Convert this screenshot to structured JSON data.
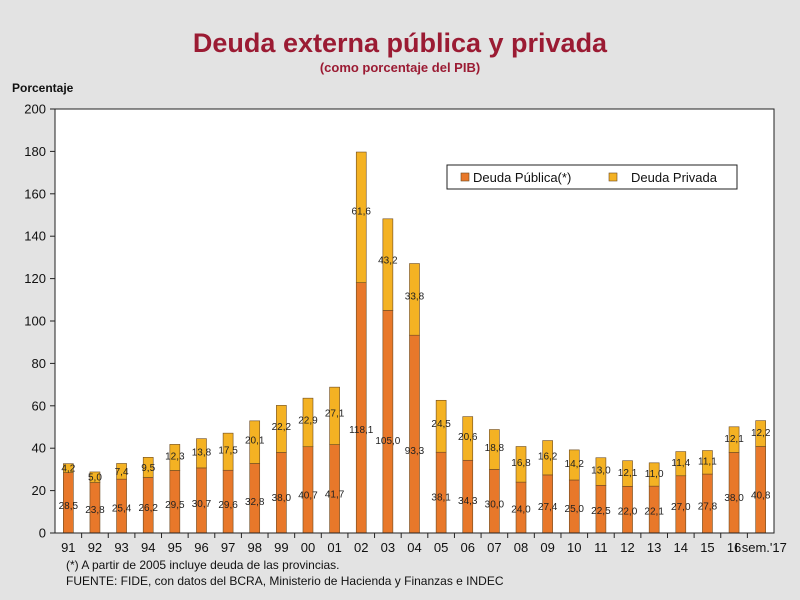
{
  "header": {
    "title": "Deuda externa pública y privada",
    "subtitle": "(como porcentaje del PIB)"
  },
  "footnotes": {
    "note": "(*) A partir de 2005 incluye deuda de las provincias.",
    "source": "FUENTE: FIDE, con datos del BCRA, Ministerio de Hacienda y Finanzas e INDEC"
  },
  "colors": {
    "publica": "#e8782a",
    "privada": "#f4b223",
    "axis": "#222222"
  },
  "chart_data": {
    "type": "bar",
    "stacked": true,
    "title": "Deuda externa pública y privada",
    "subtitle": "(como porcentaje del PIB)",
    "ylabel": "Porcentaje",
    "xlabel": "",
    "ylim": [
      0,
      200
    ],
    "yticks": [
      0,
      20,
      40,
      60,
      80,
      100,
      120,
      140,
      160,
      180,
      200
    ],
    "legend_position": "top-right",
    "categories": [
      "91",
      "92",
      "93",
      "94",
      "95",
      "96",
      "97",
      "98",
      "99",
      "00",
      "01",
      "02",
      "03",
      "04",
      "05",
      "06",
      "07",
      "08",
      "09",
      "10",
      "11",
      "12",
      "13",
      "14",
      "15",
      "16",
      "I sem.'17"
    ],
    "series": [
      {
        "name": "Deuda Pública(*)",
        "values": [
          28.5,
          23.8,
          25.4,
          26.2,
          29.5,
          30.7,
          29.6,
          32.8,
          38.0,
          40.7,
          41.7,
          118.1,
          105.0,
          93.3,
          38.1,
          34.3,
          30.0,
          24.0,
          27.4,
          25.0,
          22.5,
          22.0,
          22.1,
          27.0,
          27.8,
          38.0,
          40.8
        ],
        "labels": [
          "28,5",
          "23,8",
          "25,4",
          "26,2",
          "29,5",
          "30,7",
          "29,6",
          "32,8",
          "38,0",
          "40,7",
          "41,7",
          "118,1",
          "105,0",
          "93,3",
          "38,1",
          "34,3",
          "30,0",
          "24,0",
          "27,4",
          "25,0",
          "22,5",
          "22,0",
          "22,1",
          "27,0",
          "27,8",
          "38,0",
          "40,8"
        ]
      },
      {
        "name": "Deuda Privada",
        "values": [
          4.2,
          5.0,
          7.4,
          9.5,
          12.3,
          13.8,
          17.5,
          20.1,
          22.2,
          22.9,
          27.1,
          61.6,
          43.2,
          33.8,
          24.5,
          20.6,
          18.8,
          16.8,
          16.2,
          14.2,
          13.0,
          12.1,
          11.0,
          11.4,
          11.1,
          12.1,
          12.2
        ],
        "labels": [
          "4,2",
          "5,0",
          "7,4",
          "9,5",
          "12,3",
          "13,8",
          "17,5",
          "20,1",
          "22,2",
          "22,9",
          "27,1",
          "61,6",
          "43,2",
          "33,8",
          "24,5",
          "20,6",
          "18,8",
          "16,8",
          "16,2",
          "14,2",
          "13,0",
          "12,1",
          "11,0",
          "11,4",
          "11,1",
          "12,1",
          "12,2"
        ]
      }
    ]
  }
}
